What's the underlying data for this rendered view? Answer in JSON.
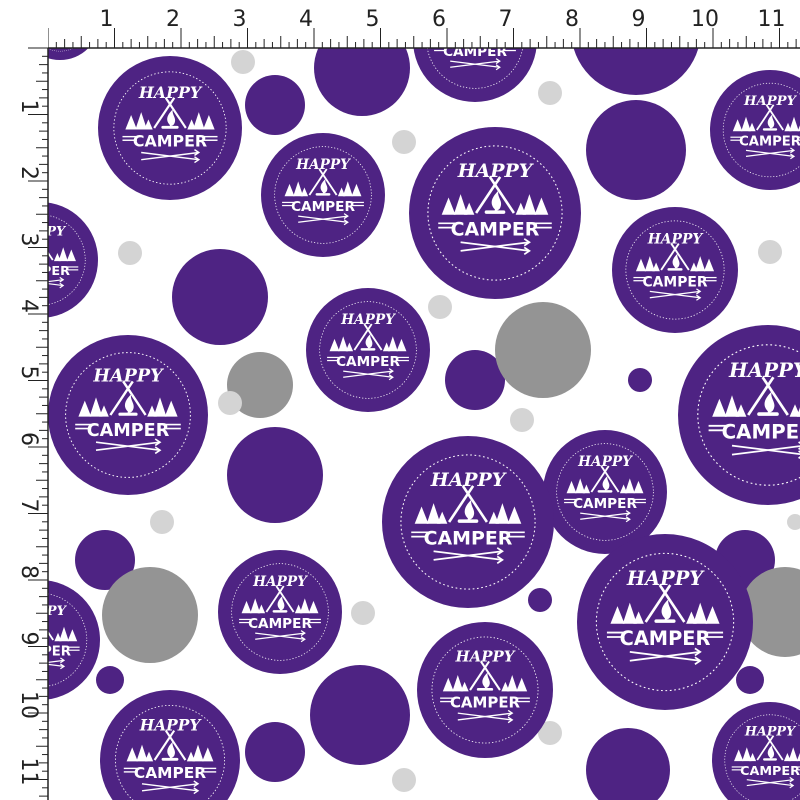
{
  "pattern": {
    "badge_text_top": "HAPPY",
    "badge_text_bottom": "CAMPER",
    "colors": {
      "background": "#ffffff",
      "purple": "#4e2383",
      "gray_dark": "#949494",
      "gray_light": "#d4d4d4",
      "badge_ink": "#ffffff",
      "ruler_fill": "#ffffff",
      "ruler_ink": "#222222"
    },
    "icons": [
      "tent-icon",
      "campfire-icon",
      "pine-trees-icon",
      "crossed-arrows-icon"
    ]
  },
  "ruler": {
    "unit": "inch",
    "top_numbers": [
      "1",
      "2",
      "3",
      "4",
      "5",
      "6",
      "7",
      "8",
      "9",
      "10",
      "11"
    ],
    "left_numbers": [
      "1",
      "2",
      "3",
      "4",
      "5",
      "6",
      "7",
      "8",
      "9",
      "10",
      "11"
    ]
  }
}
